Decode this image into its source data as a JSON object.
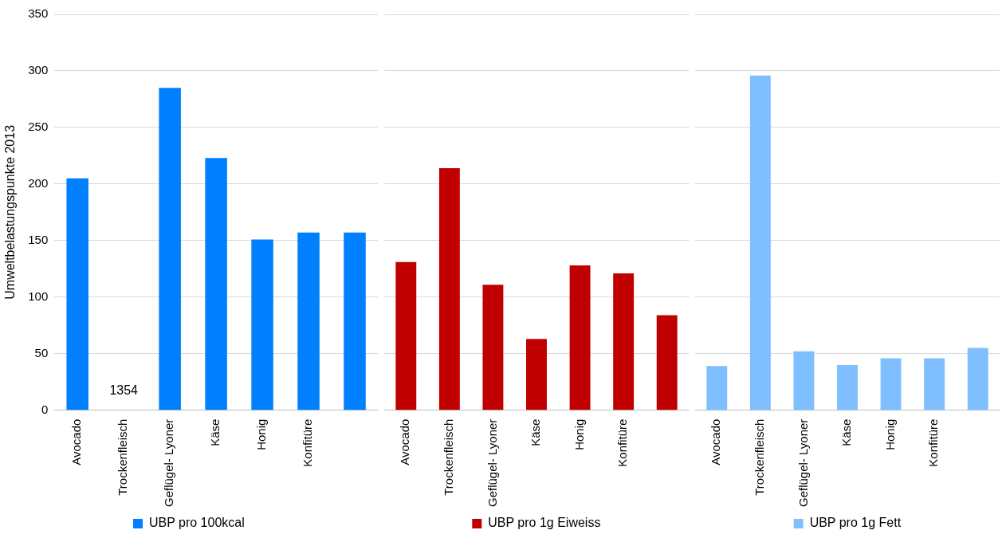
{
  "chart_data": [
    {
      "type": "bar",
      "ylabel": "Umweltbelastungspunkte 2013",
      "categories": [
        "Avocado",
        "Trockenfleisch",
        "Geflügel- Lyoner",
        "Käse",
        "Honig",
        "Konfitüre",
        null
      ],
      "series": [
        {
          "name": "UBP pro 100kcal",
          "color": "#0080ff",
          "values": [
            205,
            null,
            285,
            223,
            151,
            157,
            157
          ],
          "value_labels": [
            null,
            "1354",
            null,
            null,
            null,
            null,
            null
          ]
        }
      ],
      "ylim": [
        0,
        350
      ],
      "yticks": [
        0,
        50,
        100,
        150,
        200,
        250,
        300,
        350
      ],
      "grid": "y",
      "legend": "bottom"
    },
    {
      "type": "bar",
      "categories": [
        "Avocado",
        "Trockenfleisch",
        "Geflügel- Lyoner",
        "Käse",
        "Honig",
        "Konfitüre",
        null
      ],
      "series": [
        {
          "name": "UBP pro 1g Eiweiss",
          "color": "#c00000",
          "values": [
            131,
            214,
            111,
            63,
            128,
            121,
            84
          ]
        }
      ],
      "ylim": [
        0,
        350
      ],
      "yticks": [
        0,
        50,
        100,
        150,
        200,
        250,
        300,
        350
      ],
      "grid": "y",
      "legend": "bottom",
      "tick_labels": "x"
    },
    {
      "type": "bar",
      "categories": [
        "Avocado",
        "Trockenfleisch",
        "Geflügel- Lyoner",
        "Käse",
        "Honig",
        "Konfitüre",
        null
      ],
      "series": [
        {
          "name": "UBP pro 1g Fett",
          "color": "#80bfff",
          "values": [
            39,
            296,
            52,
            40,
            46,
            46,
            55
          ]
        }
      ],
      "ylim": [
        0,
        350
      ],
      "yticks": [
        0,
        50,
        100,
        150,
        200,
        250,
        300,
        350
      ],
      "grid": "y",
      "legend": "bottom",
      "tick_labels": "x"
    }
  ]
}
